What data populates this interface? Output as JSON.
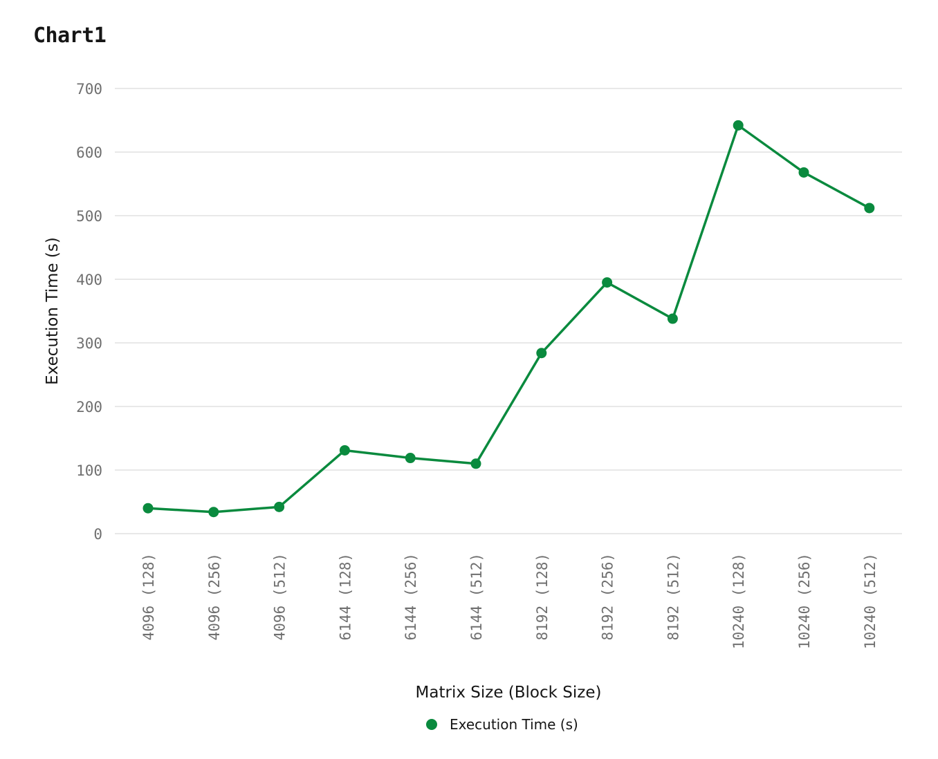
{
  "chart_data": {
    "type": "line",
    "title": "Chart1",
    "xlabel": "Matrix Size (Block Size)",
    "ylabel": "Execution Time (s)",
    "ylim": [
      0,
      700
    ],
    "yticks": [
      0,
      100,
      200,
      300,
      400,
      500,
      600,
      700
    ],
    "grid": true,
    "legend_position": "bottom-center",
    "categories": [
      "4096 (128)",
      "4096 (256)",
      "4096 (512)",
      "6144 (128)",
      "6144 (256)",
      "6144 (512)",
      "8192 (128)",
      "8192 (256)",
      "8192 (512)",
      "10240 (128)",
      "10240 (256)",
      "10240 (512)"
    ],
    "series": [
      {
        "name": "Execution Time (s)",
        "color": "#0a8a3e",
        "values": [
          40,
          34,
          42,
          131,
          119,
          110,
          284,
          395,
          338,
          642,
          568,
          512
        ]
      }
    ]
  }
}
